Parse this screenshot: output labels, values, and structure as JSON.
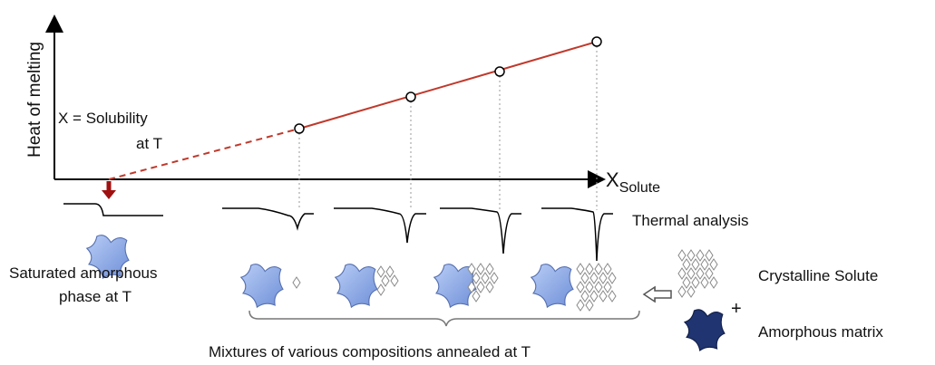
{
  "y_axis_label": "Heat of melting",
  "x_axis_label": {
    "main": "X",
    "subscript": "Solute"
  },
  "solubility_note": [
    "X = Solubility",
    "at T"
  ],
  "thermal_label": "Thermal analysis",
  "saturated_label": [
    "Saturated amorphous",
    "phase at T"
  ],
  "legend": {
    "crystalline": "Crystalline Solute",
    "plus": "+",
    "amorphous": "Amorphous matrix"
  },
  "mixtures_label": "Mixtures of various compositions annealed at T"
}
